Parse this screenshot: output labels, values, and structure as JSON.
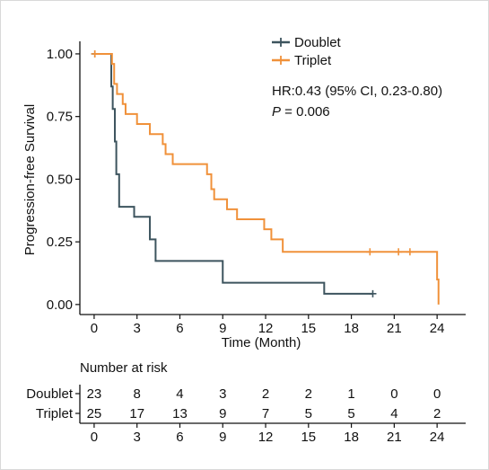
{
  "chart_data": {
    "type": "line",
    "subtype": "kaplan-meier",
    "xlabel": "Time (Month)",
    "ylabel": "Progression-free Survival",
    "xlim": [
      -1,
      26
    ],
    "ylim": [
      -0.04,
      1.05
    ],
    "xticks": [
      0,
      3,
      6,
      9,
      12,
      15,
      18,
      21,
      24
    ],
    "yticks": [
      0.0,
      0.25,
      0.5,
      0.75,
      1.0
    ],
    "ytick_labels": [
      "0.00",
      "0.25",
      "0.50",
      "0.75",
      "1.00"
    ],
    "legend": {
      "position": "top-right",
      "entries": [
        "Doublet",
        "Triplet"
      ]
    },
    "annotation": {
      "hr_text": "HR:0.43 (95% CI, 0.23-0.80)",
      "p_prefix": "P",
      "p_value": " = 0.006"
    },
    "series": [
      {
        "name": "Doublet",
        "color": "#3d545e",
        "steps": [
          [
            0,
            1.0
          ],
          [
            1.2,
            0.87
          ],
          [
            1.3,
            0.78
          ],
          [
            1.45,
            0.65
          ],
          [
            1.55,
            0.52
          ],
          [
            1.75,
            0.39
          ],
          [
            2.8,
            0.35
          ],
          [
            3.9,
            0.26
          ],
          [
            4.3,
            0.174
          ],
          [
            9.0,
            0.087
          ],
          [
            16.1,
            0.043
          ],
          [
            19.5,
            0.043
          ]
        ],
        "censor": [
          [
            0.05,
            1.0
          ],
          [
            19.5,
            0.043
          ]
        ]
      },
      {
        "name": "Triplet",
        "color": "#f0913a",
        "steps": [
          [
            0,
            1.0
          ],
          [
            1.25,
            0.96
          ],
          [
            1.4,
            0.88
          ],
          [
            1.6,
            0.84
          ],
          [
            2.0,
            0.8
          ],
          [
            2.2,
            0.76
          ],
          [
            3.0,
            0.72
          ],
          [
            3.9,
            0.68
          ],
          [
            4.8,
            0.64
          ],
          [
            5.0,
            0.6
          ],
          [
            5.5,
            0.56
          ],
          [
            7.9,
            0.52
          ],
          [
            8.2,
            0.46
          ],
          [
            8.4,
            0.42
          ],
          [
            9.3,
            0.38
          ],
          [
            10.0,
            0.34
          ],
          [
            11.9,
            0.3
          ],
          [
            12.4,
            0.26
          ],
          [
            13.2,
            0.21
          ],
          [
            24.0,
            0.1
          ],
          [
            24.1,
            0.0
          ]
        ],
        "censor": [
          [
            0.05,
            1.0
          ],
          [
            19.3,
            0.21
          ],
          [
            21.3,
            0.21
          ],
          [
            22.1,
            0.21
          ]
        ]
      }
    ]
  },
  "risk_table": {
    "title": "Number at risk",
    "rows": [
      {
        "label": "Doublet",
        "color": "#3d545e",
        "values": [
          "23",
          "8",
          "4",
          "3",
          "2",
          "2",
          "1",
          "0",
          "0"
        ]
      },
      {
        "label": "Triplet",
        "color": "#f0913a",
        "values": [
          "25",
          "17",
          "13",
          "9",
          "7",
          "5",
          "5",
          "4",
          "2"
        ]
      }
    ],
    "times": [
      "0",
      "3",
      "6",
      "9",
      "12",
      "15",
      "18",
      "21",
      "24"
    ]
  }
}
